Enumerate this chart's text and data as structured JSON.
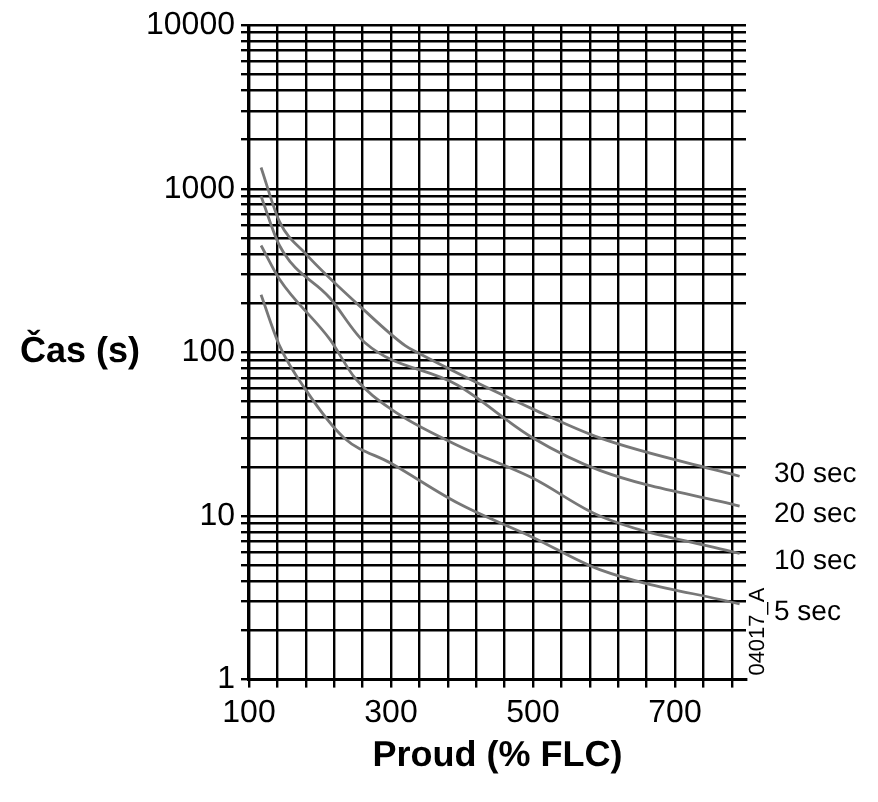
{
  "chart_data": {
    "type": "line",
    "ylabel": "Čas (s)",
    "xlabel": "Proud (% FLC)",
    "log": "y",
    "grid": true,
    "marker": "none",
    "line_style": "solid",
    "legend": false,
    "xlim": [
      100,
      800
    ],
    "ylim": [
      1,
      10000
    ],
    "xticks": [
      100,
      {
        "value": 140,
        "label": null
      },
      {
        "value": 180,
        "label": null
      },
      {
        "value": 220,
        "label": null
      },
      {
        "value": 260,
        "label": null
      },
      300,
      {
        "value": 340,
        "label": null
      },
      {
        "value": 380,
        "label": null
      },
      {
        "value": 420,
        "label": null
      },
      {
        "value": 460,
        "label": null
      },
      500,
      {
        "value": 540,
        "label": null
      },
      {
        "value": 580,
        "label": null
      },
      {
        "value": 620,
        "label": null
      },
      {
        "value": 660,
        "label": null
      },
      700,
      {
        "value": 740,
        "label": null
      },
      {
        "value": 780,
        "label": null
      }
    ],
    "yticks": [
      1,
      {
        "value": 2,
        "label": null
      },
      {
        "value": 3,
        "label": null
      },
      {
        "value": 4,
        "label": null
      },
      {
        "value": 5,
        "label": null
      },
      {
        "value": 6,
        "label": null
      },
      {
        "value": 7,
        "label": null
      },
      {
        "value": 8,
        "label": null
      },
      {
        "value": 9,
        "label": null
      },
      10,
      {
        "value": 20,
        "label": null
      },
      {
        "value": 30,
        "label": null
      },
      {
        "value": 40,
        "label": null
      },
      {
        "value": 50,
        "label": null
      },
      {
        "value": 60,
        "label": null
      },
      {
        "value": 70,
        "label": null
      },
      {
        "value": 80,
        "label": null
      },
      {
        "value": 90,
        "label": null
      },
      100,
      {
        "value": 200,
        "label": null
      },
      {
        "value": 300,
        "label": null
      },
      {
        "value": 400,
        "label": null
      },
      {
        "value": 500,
        "label": null
      },
      {
        "value": 600,
        "label": null
      },
      {
        "value": 700,
        "label": null
      },
      {
        "value": 800,
        "label": null
      },
      {
        "value": 900,
        "label": null
      },
      1000,
      {
        "value": 2000,
        "label": null
      },
      {
        "value": 3000,
        "label": null
      },
      {
        "value": 4000,
        "label": null
      },
      {
        "value": 5000,
        "label": null
      },
      {
        "value": 6000,
        "label": null
      },
      {
        "value": 7000,
        "label": null
      },
      {
        "value": 8000,
        "label": null
      },
      {
        "value": 9000,
        "label": null
      },
      10000
    ],
    "annotations": [
      "04017_A"
    ],
    "series": [
      {
        "name": "30 sec",
        "color": "#777777",
        "x": [
          117,
          143,
          180,
          263,
          320,
          337,
          500,
          594,
          791
        ],
        "values": [
          1350,
          630,
          400,
          180,
          110,
          100,
          45,
          30,
          17.5
        ]
      },
      {
        "name": "20 sec",
        "color": "#777777",
        "x": [
          117,
          143,
          214,
          263,
          394,
          500,
          594,
          791
        ],
        "values": [
          900,
          450,
          215,
          115,
          63,
          30,
          19,
          11.5
        ]
      },
      {
        "name": "10 sec",
        "color": "#777777",
        "x": [
          117,
          143,
          214,
          249,
          300,
          394,
          500,
          594,
          791
        ],
        "values": [
          450,
          280,
          120,
          70,
          45,
          27,
          17,
          10,
          5.9
        ]
      },
      {
        "name": "5 sec",
        "color": "#777777",
        "x": [
          117,
          143,
          180,
          234,
          300,
          394,
          500,
          594,
          791
        ],
        "values": [
          225,
          110,
          59,
          30,
          21,
          12,
          7.4,
          4.7,
          2.9
        ]
      }
    ]
  }
}
